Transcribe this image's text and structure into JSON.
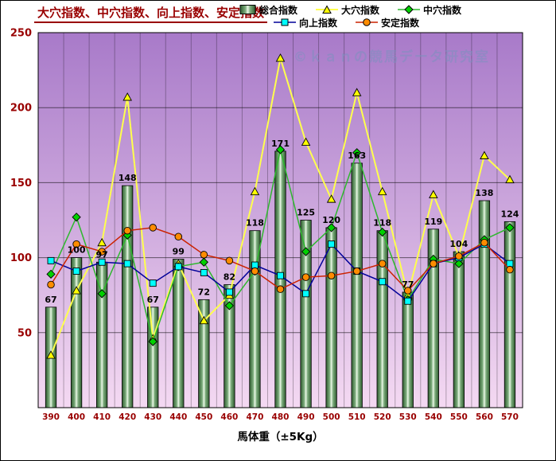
{
  "watermark": "©ｋａｎの競馬データ研究室",
  "chart_data": {
    "type": "bar",
    "title": "大穴指数、中穴指数、向上指数、安定指数",
    "xlabel": "馬体重（±5Kg）",
    "ylabel": "",
    "ylim": [
      0,
      250
    ],
    "yticks": [
      50,
      100,
      150,
      200,
      250
    ],
    "categories": [
      "390",
      "400",
      "410",
      "420",
      "430",
      "440",
      "450",
      "460",
      "470",
      "480",
      "490",
      "500",
      "510",
      "520",
      "530",
      "540",
      "550",
      "560",
      "570"
    ],
    "bar_series": {
      "name": "総合指数",
      "values": [
        67,
        100,
        97,
        148,
        67,
        99,
        72,
        82,
        118,
        171,
        125,
        120,
        163,
        118,
        77,
        119,
        104,
        138,
        124
      ]
    },
    "line_series": [
      {
        "name": "大穴指数",
        "marker": "triangle",
        "line_color": "#ffff4d",
        "marker_fill": "#ffff00",
        "line_width": 2,
        "values": [
          35,
          78,
          110,
          207,
          46,
          96,
          58,
          75,
          144,
          233,
          177,
          139,
          210,
          144,
          75,
          142,
          101,
          168,
          152
        ]
      },
      {
        "name": "中穴指数",
        "marker": "diamond",
        "line_color": "#2eb82e",
        "marker_fill": "#00d000",
        "line_width": 1.5,
        "values": [
          89,
          127,
          76,
          115,
          44,
          94,
          97,
          68,
          91,
          172,
          104,
          120,
          170,
          117,
          72,
          99,
          96,
          112,
          120
        ]
      },
      {
        "name": "向上指数",
        "marker": "square",
        "line_color": "#000099",
        "marker_fill": "#00ffff",
        "line_width": 1.5,
        "values": [
          98,
          91,
          97,
          96,
          83,
          94,
          90,
          77,
          95,
          88,
          76,
          109,
          91,
          84,
          71,
          96,
          100,
          109,
          96
        ]
      },
      {
        "name": "安定指数",
        "marker": "circle",
        "line_color": "#cc2200",
        "marker_fill": "#ff8c00",
        "line_width": 1.5,
        "values": [
          82,
          109,
          104,
          118,
          120,
          114,
          102,
          98,
          91,
          79,
          87,
          88,
          91,
          96,
          78,
          96,
          101,
          110,
          92
        ]
      }
    ],
    "legend_position": "top",
    "grid": "on",
    "colors": {
      "axis_label": "#990000",
      "title": "#990000",
      "bg_top": "#a87ac9",
      "bg_bottom": "#f4d9f2",
      "bar_dark": "#2e5c2e",
      "bar_mid": "#7fae7f",
      "bar_light": "#ecf9e8",
      "bar_border": "#000000",
      "watermark": "#7d8fc0",
      "bar_label": "#000000"
    }
  }
}
